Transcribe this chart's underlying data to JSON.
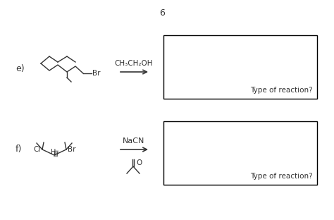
{
  "background_color": "#ffffff",
  "page_number": "6",
  "section_e": {
    "label": "e)",
    "reagent": "CH₃CH₂OH",
    "box_text": "Type of reaction?"
  },
  "section_f": {
    "label": "f)",
    "reagent": "NaCN",
    "box_text": "Type of reaction?"
  },
  "box_color": "#000000",
  "text_color": "#333333",
  "line_color": "#333333"
}
